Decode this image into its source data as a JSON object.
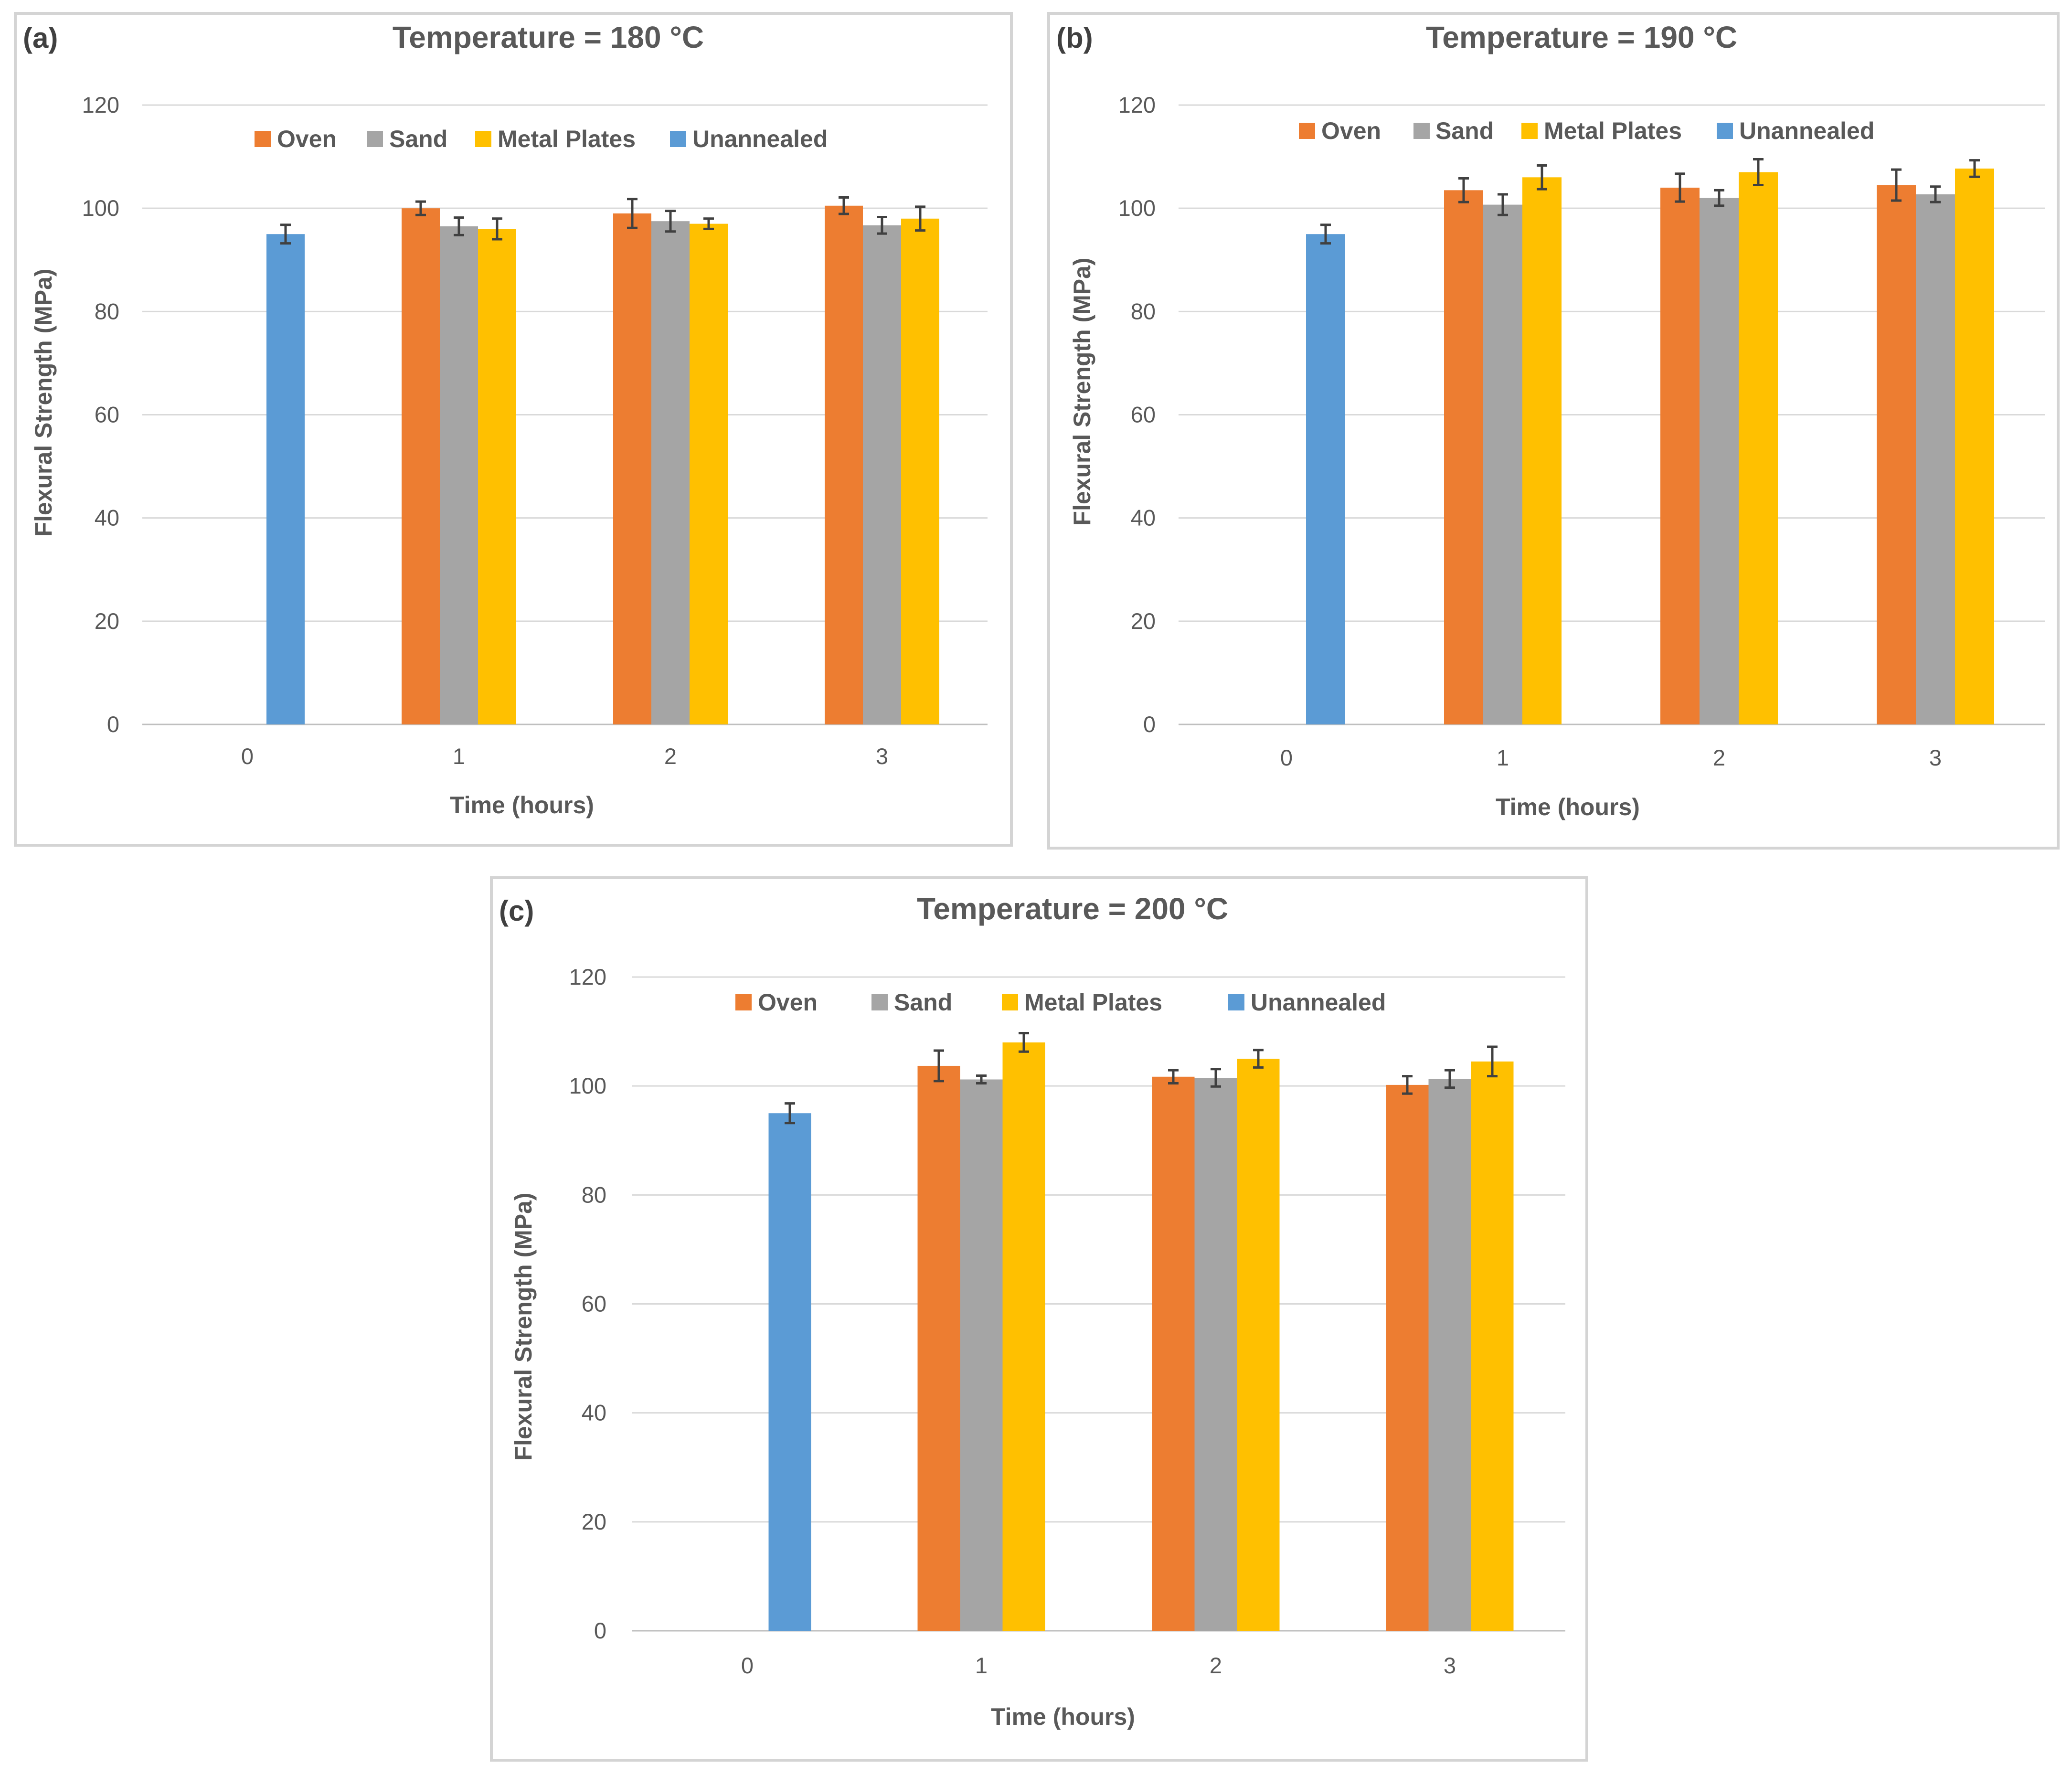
{
  "colors": {
    "Oven": "#ed7d31",
    "Sand": "#a5a5a5",
    "Metal Plates": "#ffc000",
    "Unannealed": "#5b9bd5"
  },
  "chart_data": [
    {
      "panel": "(a)",
      "type": "bar",
      "title": "Temperature = 180 °C",
      "xlabel": "Time (hours)",
      "ylabel": "Flexural Strength (MPa)",
      "ylim": [
        0,
        120
      ],
      "yticks": [
        0,
        20,
        40,
        60,
        80,
        100,
        120
      ],
      "categories": [
        "0",
        "1",
        "2",
        "3"
      ],
      "legend": [
        "Oven",
        "Sand",
        "Metal Plates",
        "Unannealed"
      ],
      "legend_position": "top",
      "grid": true,
      "unannealed": {
        "category": "0",
        "value": 95,
        "error": 1.8
      },
      "series": [
        {
          "name": "Oven",
          "values": [
            null,
            100,
            99,
            100.5
          ],
          "errors": [
            null,
            1.3,
            2.8,
            1.6
          ]
        },
        {
          "name": "Sand",
          "values": [
            null,
            96.5,
            97.5,
            96.7
          ],
          "errors": [
            null,
            1.7,
            2.0,
            1.6
          ]
        },
        {
          "name": "Metal Plates",
          "values": [
            null,
            96,
            97,
            98
          ],
          "errors": [
            null,
            2.0,
            1.0,
            2.3
          ]
        }
      ]
    },
    {
      "panel": "(b)",
      "type": "bar",
      "title": "Temperature = 190 °C",
      "xlabel": "Time (hours)",
      "ylabel": "Flexural Strength (MPa)",
      "ylim": [
        0,
        120
      ],
      "yticks": [
        0,
        20,
        40,
        60,
        80,
        100,
        120
      ],
      "categories": [
        "0",
        "1",
        "2",
        "3"
      ],
      "legend": [
        "Oven",
        "Sand",
        "Metal Plates",
        "Unannealed"
      ],
      "legend_position": "top",
      "grid": true,
      "unannealed": {
        "category": "0",
        "value": 95,
        "error": 1.8
      },
      "series": [
        {
          "name": "Oven",
          "values": [
            null,
            103.5,
            104,
            104.5
          ],
          "errors": [
            null,
            2.3,
            2.7,
            3.0
          ]
        },
        {
          "name": "Sand",
          "values": [
            null,
            100.7,
            102,
            102.7
          ],
          "errors": [
            null,
            2.0,
            1.5,
            1.5
          ]
        },
        {
          "name": "Metal Plates",
          "values": [
            null,
            106,
            107,
            107.7
          ],
          "errors": [
            null,
            2.3,
            2.5,
            1.6
          ]
        }
      ]
    },
    {
      "panel": "(c)",
      "type": "bar",
      "title": "Temperature = 200 °C",
      "xlabel": "Time (hours)",
      "ylabel": "Flexural Strength (MPa)",
      "ylim": [
        0,
        120
      ],
      "yticks": [
        0,
        20,
        40,
        60,
        80,
        100,
        120
      ],
      "categories": [
        "0",
        "1",
        "2",
        "3"
      ],
      "legend": [
        "Oven",
        "Sand",
        "Metal Plates",
        "Unannealed"
      ],
      "legend_position": "top",
      "grid": true,
      "unannealed": {
        "category": "0",
        "value": 95,
        "error": 1.8
      },
      "series": [
        {
          "name": "Oven",
          "values": [
            null,
            103.7,
            101.7,
            100.2
          ],
          "errors": [
            null,
            2.8,
            1.2,
            1.6
          ]
        },
        {
          "name": "Sand",
          "values": [
            null,
            101.2,
            101.5,
            101.3
          ],
          "errors": [
            null,
            0.7,
            1.6,
            1.6
          ]
        },
        {
          "name": "Metal Plates",
          "values": [
            null,
            108,
            105,
            104.5
          ],
          "errors": [
            null,
            1.7,
            1.6,
            2.7
          ]
        }
      ]
    }
  ]
}
